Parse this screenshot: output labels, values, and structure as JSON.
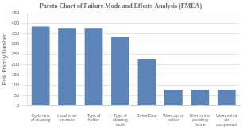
{
  "chart_data": {
    "type": "bar",
    "title": "Pareto Chart of Failure Mode and Effects Analysis (FMEA)",
    "ylabel": "Risk Priority Number",
    "categories": [
      "Cycle time\nof cleaning",
      "Level of air\npressure",
      "Type of\nholder",
      "Type of\ncleaning\ntools",
      "Robot Error",
      "Worn-out of\nrubber",
      "Worn-out of\nchecking\nfixture",
      "Worn-out of\nair\ncompressor"
    ],
    "values": [
      385,
      378,
      378,
      333,
      225,
      78,
      78,
      78
    ],
    "color": "#5b84b8",
    "ylim": [
      0,
      450
    ],
    "yticks": [
      0,
      50,
      100,
      150,
      200,
      250,
      300,
      350,
      400,
      450
    ],
    "grid": true
  }
}
